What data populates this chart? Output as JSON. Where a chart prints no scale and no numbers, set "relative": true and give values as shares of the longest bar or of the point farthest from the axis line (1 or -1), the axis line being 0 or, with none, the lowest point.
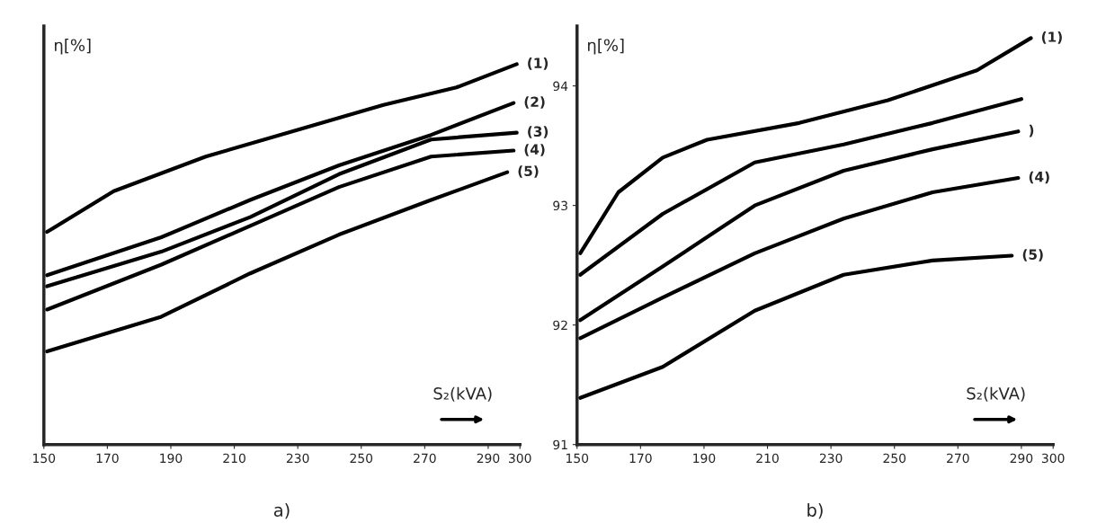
{
  "chart_data": [
    {
      "type": "line",
      "ylabel": "η[%]",
      "relative": true,
      "xlim": [
        150,
        300
      ],
      "xticks": [
        150,
        170,
        190,
        210,
        230,
        250,
        270,
        290,
        300
      ],
      "grid": false,
      "marker": "none",
      "line_style": "solid",
      "annotations": [
        "S₂(kVA)",
        "a)"
      ],
      "series": [
        {
          "name": "(1)",
          "color": "#000000",
          "x": [
            151,
            172,
            201,
            229,
            257,
            280,
            299
          ],
          "values": [
            0.559,
            0.666,
            0.757,
            0.825,
            0.893,
            0.939,
            1.0
          ]
        },
        {
          "name": "(2)",
          "color": "#000000",
          "x": [
            151,
            187,
            215,
            243,
            272,
            298
          ],
          "values": [
            0.445,
            0.545,
            0.643,
            0.734,
            0.814,
            0.898
          ]
        },
        {
          "name": "(3)",
          "color": "#000000",
          "x": [
            151,
            187,
            215,
            243,
            272,
            299
          ],
          "values": [
            0.416,
            0.507,
            0.598,
            0.711,
            0.802,
            0.82
          ]
        },
        {
          "name": "(4)",
          "color": "#000000",
          "x": [
            151,
            187,
            215,
            243,
            272,
            298
          ],
          "values": [
            0.355,
            0.473,
            0.575,
            0.677,
            0.757,
            0.773
          ]
        },
        {
          "name": "(5)",
          "color": "#000000",
          "x": [
            151,
            187,
            215,
            243,
            272,
            296
          ],
          "values": [
            0.245,
            0.336,
            0.45,
            0.552,
            0.643,
            0.716
          ]
        }
      ]
    },
    {
      "type": "line",
      "ylabel": "η[%]",
      "xlim": [
        150,
        300
      ],
      "xticks": [
        150,
        170,
        190,
        210,
        230,
        250,
        270,
        290,
        300
      ],
      "ylim": [
        91,
        94.5
      ],
      "yticks": [
        91,
        92,
        93,
        94
      ],
      "grid": false,
      "marker": "none",
      "line_style": "solid",
      "annotations": [
        "S₂(kVA)",
        "b)"
      ],
      "series": [
        {
          "name": "(1)",
          "color": "#000000",
          "x": [
            151,
            163,
            177,
            191,
            220,
            248,
            276,
            293
          ],
          "values": [
            92.6,
            93.11,
            93.4,
            93.55,
            93.69,
            93.88,
            94.13,
            94.4
          ]
        },
        {
          "color": "#000000",
          "x": [
            151,
            177,
            206,
            234,
            262,
            290
          ],
          "values": [
            92.42,
            92.93,
            93.36,
            93.51,
            93.69,
            93.89
          ]
        },
        {
          "name": ")",
          "color": "#000000",
          "x": [
            151,
            177,
            206,
            234,
            262,
            289
          ],
          "values": [
            92.04,
            92.49,
            93.0,
            93.29,
            93.47,
            93.62
          ]
        },
        {
          "name": "(4)",
          "color": "#000000",
          "x": [
            151,
            177,
            206,
            234,
            262,
            289
          ],
          "values": [
            91.89,
            92.23,
            92.6,
            92.89,
            93.11,
            93.23
          ]
        },
        {
          "name": "(5)",
          "color": "#000000",
          "x": [
            151,
            177,
            206,
            234,
            262,
            287
          ],
          "values": [
            91.39,
            91.65,
            92.12,
            92.42,
            92.54,
            92.58
          ]
        }
      ]
    }
  ]
}
